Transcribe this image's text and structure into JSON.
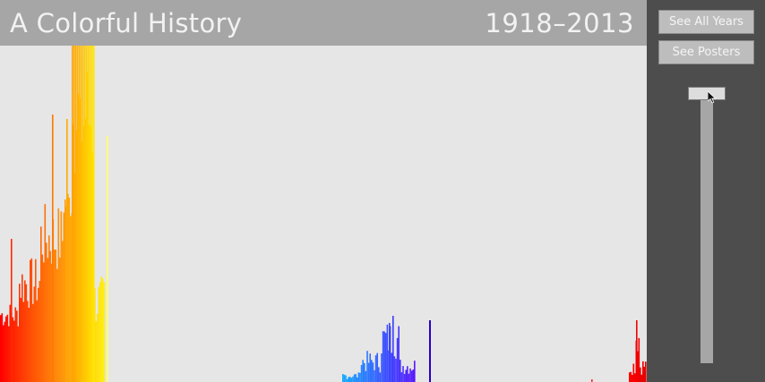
{
  "header": {
    "title": "A Colorful History",
    "year_range": "1918–2013"
  },
  "buttons": {
    "see_all_years": "See All Years",
    "see_posters": "See Posters"
  },
  "slider": {
    "value": 0.0
  },
  "colors": {
    "header_bg": "#a6a6a6",
    "plot_bg": "#e6e6e6",
    "panel_bg": "#4d4d4d",
    "button_bg": "#bdbdbd",
    "slider_track": "#a6a6a6"
  },
  "icons": {
    "cursor": "mouse-pointer-icon"
  }
}
